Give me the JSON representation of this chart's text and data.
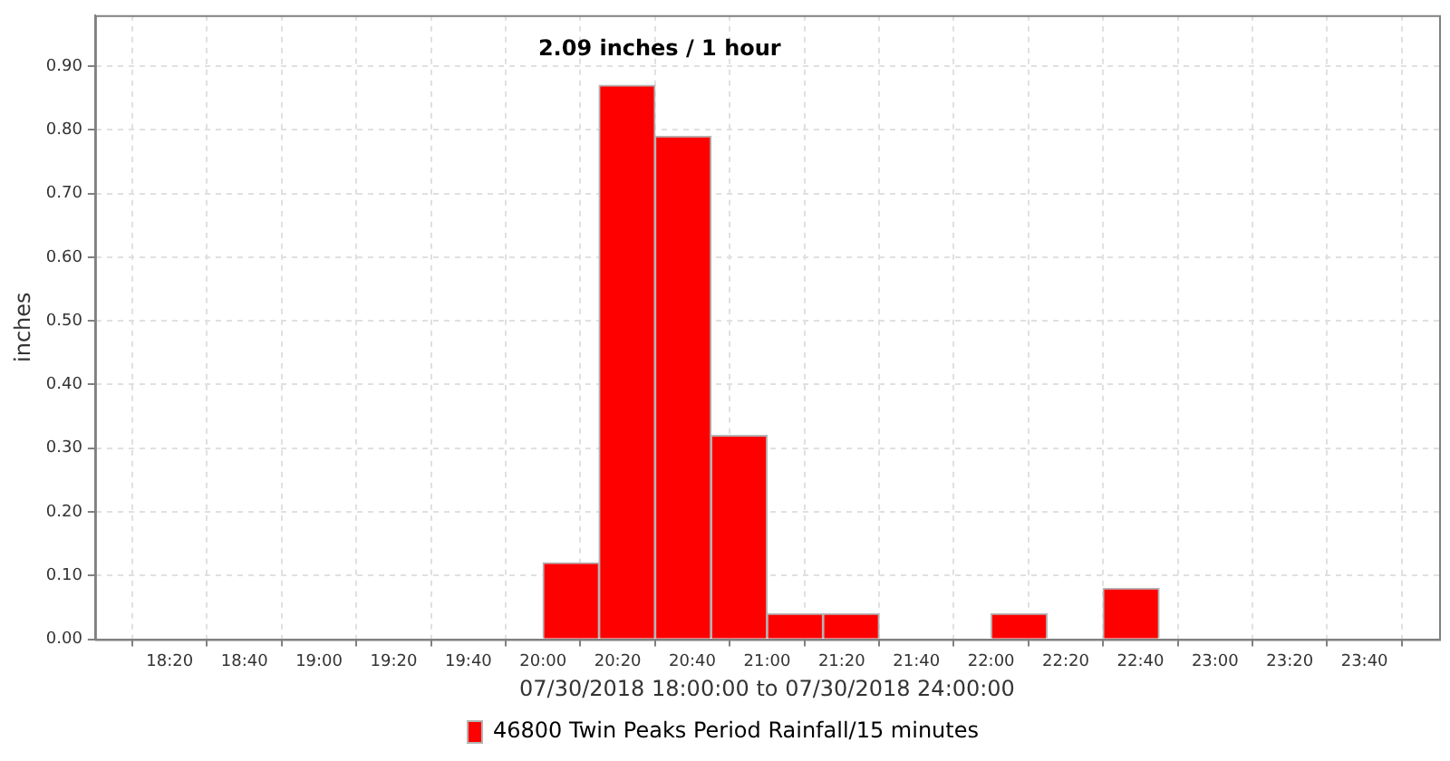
{
  "chart_data": {
    "type": "histogram",
    "title": "2.09 inches / 1 hour",
    "xlabel": "07/30/2018 18:00:00 to 07/30/2018 24:00:00",
    "ylabel": "inches",
    "bins": [
      20,
      20.25,
      20.5,
      20.75,
      21,
      21.25,
      21.5,
      21.75,
      22,
      22.25,
      22.5,
      22.75
    ],
    "series": [
      {
        "name": "46800 Twin Peaks Period Rainfall/15 minutes",
        "color": "#ff0000",
        "values": [
          0.12,
          0.87,
          0.79,
          0.32,
          0.04,
          0.04,
          0,
          0,
          0.04,
          0,
          0.08
        ]
      }
    ],
    "xlim": [
      18,
      24
    ],
    "xticks": [
      {
        "value": 18.3333,
        "label": "18:20"
      },
      {
        "value": 18.6667,
        "label": "18:40"
      },
      {
        "value": 19,
        "label": "19:00"
      },
      {
        "value": 19.3333,
        "label": "19:20"
      },
      {
        "value": 19.6667,
        "label": "19:40"
      },
      {
        "value": 20,
        "label": "20:00"
      },
      {
        "value": 20.3333,
        "label": "20:20"
      },
      {
        "value": 20.6667,
        "label": "20:40"
      },
      {
        "value": 21,
        "label": "21:00"
      },
      {
        "value": 21.3333,
        "label": "21:20"
      },
      {
        "value": 21.6667,
        "label": "21:40"
      },
      {
        "value": 22,
        "label": "22:00"
      },
      {
        "value": 22.3333,
        "label": "22:20"
      },
      {
        "value": 22.6667,
        "label": "22:40"
      },
      {
        "value": 23,
        "label": "23:00"
      },
      {
        "value": 23.3333,
        "label": "23:20"
      },
      {
        "value": 23.6667,
        "label": "23:40"
      }
    ],
    "ylim": [
      0,
      0.98
    ],
    "yticks": [
      {
        "value": 0,
        "label": "0.00"
      },
      {
        "value": 0.1,
        "label": "0.10"
      },
      {
        "value": 0.2,
        "label": "0.20"
      },
      {
        "value": 0.3,
        "label": "0.30"
      },
      {
        "value": 0.4,
        "label": "0.40"
      },
      {
        "value": 0.5,
        "label": "0.50"
      },
      {
        "value": 0.6,
        "label": "0.60"
      },
      {
        "value": 0.7,
        "label": "0.70"
      },
      {
        "value": 0.8,
        "label": "0.80"
      },
      {
        "value": 0.9,
        "label": "0.90"
      }
    ],
    "grid": true,
    "legend": "bottom"
  }
}
